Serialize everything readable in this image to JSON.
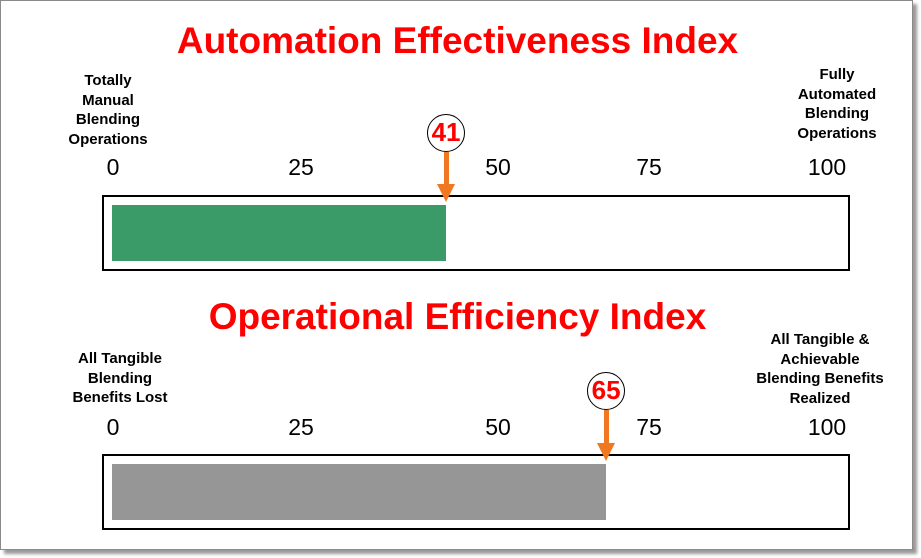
{
  "chart_data": [
    {
      "type": "bar",
      "title": "Automation Effectiveness Index",
      "label_min": "Totally\nManual\nBlending\nOperations",
      "label_max": "Fully\nAutomated\nBlending\nOperations",
      "ticks": [
        "0",
        "25",
        "50",
        "75",
        "100"
      ],
      "xlim": [
        0,
        100
      ],
      "value": 41,
      "value_label": "41",
      "fill_color": "#3a9a68",
      "arrow_color": "#f07820"
    },
    {
      "type": "bar",
      "title": "Operational Efficiency Index",
      "label_min": "All Tangible\nBlending\nBenefits Lost",
      "label_max": "All Tangible &\nAchievable\nBlending Benefits\nRealized",
      "ticks": [
        "0",
        "25",
        "50",
        "75",
        "100"
      ],
      "xlim": [
        0,
        100
      ],
      "value": 65,
      "value_label": "65",
      "fill_color": "#969696",
      "arrow_color": "#f07820"
    }
  ]
}
